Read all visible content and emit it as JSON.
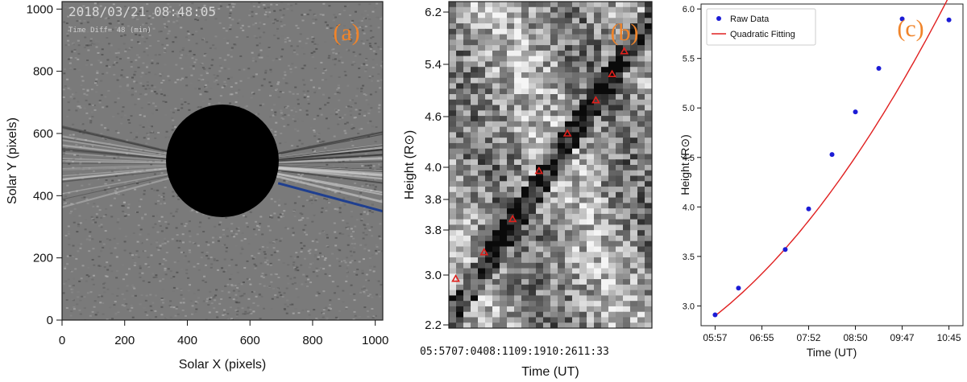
{
  "chart_data": [
    {
      "type": "image",
      "panel_label": "(a)",
      "timestamp": "2018/03/21 08:48:05",
      "subtitle": "Time Diff= 48 (min)",
      "xlabel": "Solar X (pixels)",
      "ylabel": "Solar Y (pixels)",
      "xlim": [
        0,
        1024
      ],
      "ylim": [
        0,
        1024
      ],
      "xticks": [
        0,
        200,
        400,
        600,
        800,
        1000
      ],
      "yticks": [
        0,
        200,
        400,
        600,
        800,
        1000
      ],
      "occulter_center": [
        512,
        512
      ],
      "occulter_radius": 180,
      "slit": {
        "x": [
          690,
          1024
        ],
        "y": [
          440,
          350
        ],
        "color": "#1f3f8f"
      }
    },
    {
      "type": "heatmap",
      "panel_label": "(b)",
      "xlabel": "Time (UT)",
      "ylabel": "Height (R⊙)",
      "xtick_text": "05:5707:0408:1109:1910:2611:33",
      "yticks": [
        "2.2",
        "3.0",
        "3.8",
        "3.8",
        "4.0",
        "4.6",
        "5.4",
        "6.2"
      ],
      "marker_color": "#e0201c",
      "markers": [
        {
          "x": 0.01,
          "y": 2.94
        },
        {
          "x": 0.15,
          "y": 3.27
        },
        {
          "x": 0.29,
          "y": 3.58
        },
        {
          "x": 0.42,
          "y": 3.97
        },
        {
          "x": 0.56,
          "y": 4.4
        },
        {
          "x": 0.7,
          "y": 4.85
        },
        {
          "x": 0.78,
          "y": 5.25
        },
        {
          "x": 0.84,
          "y": 5.6
        }
      ]
    },
    {
      "type": "scatter",
      "panel_label": "(c)",
      "xlabel": "Time (UT)",
      "ylabel": "Height (R⊙)",
      "xticks": [
        "05:57",
        "06:55",
        "07:52",
        "08:50",
        "09:47",
        "10:45"
      ],
      "xlim": [
        -0.3,
        5.3
      ],
      "ylim": [
        2.8,
        6.05
      ],
      "yticks": [
        3.0,
        3.5,
        4.0,
        4.5,
        5.0,
        5.5,
        6.0
      ],
      "series": [
        {
          "name": "Raw Data",
          "color": "#1c1cd6",
          "x": [
            0.0,
            0.5,
            1.5,
            2.0,
            2.5,
            3.0,
            3.5,
            4.0,
            5.0
          ],
          "y": [
            2.91,
            3.18,
            3.57,
            3.98,
            4.53,
            4.96,
            5.4,
            5.9,
            5.89
          ]
        },
        {
          "name": "Quadratic Fitting",
          "color": "#e02020",
          "fit": [
            2.9,
            0.37,
            0.055
          ]
        }
      ],
      "legend": "top-left",
      "panel_label_color": "#f0842a"
    }
  ]
}
